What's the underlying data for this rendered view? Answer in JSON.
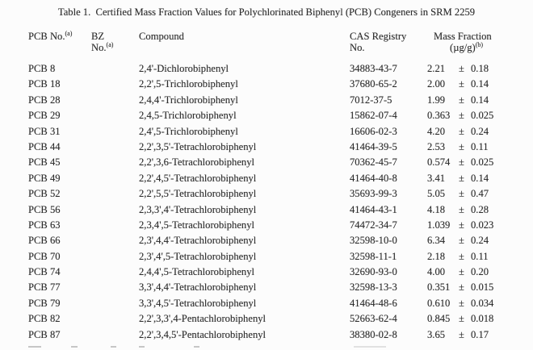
{
  "page": {
    "title": "Table 1.  Certified Mass Fraction Values for Polychlorinated Biphenyl (PCB) Congeners in SRM 2259"
  },
  "colors": {
    "background": "#fcfcfc",
    "text": "#2d2d2d"
  },
  "table": {
    "header": {
      "pcb_line1": "PCB No.",
      "pcb_sup": "(a)",
      "bz_line1": "BZ",
      "bz_line2": "No.",
      "bz_sup": "(a)",
      "compound": "Compound",
      "cas_line1": "CAS Registry",
      "cas_line2": "No.",
      "mf_line1": "Mass Fraction",
      "mf_line2": "(µg/g)",
      "mf_sup": "(b)"
    },
    "pm_symbol": "±",
    "rows": [
      {
        "pcb": "PCB 8",
        "bz": "",
        "compound": "2,4'-Dichlorobiphenyl",
        "cas": "34883-43-7",
        "value": "2.21",
        "err": "0.18"
      },
      {
        "pcb": "PCB 18",
        "bz": "",
        "compound": "2,2',5-Trichlorobiphenyl",
        "cas": "37680-65-2",
        "value": "2.00",
        "err": "0.14"
      },
      {
        "pcb": "PCB 28",
        "bz": "",
        "compound": "2,4,4'-Trichlorobiphenyl",
        "cas": "7012-37-5",
        "value": "1.99",
        "err": "0.14"
      },
      {
        "pcb": "PCB 29",
        "bz": "",
        "compound": "2,4,5-Trichlorobiphenyl",
        "cas": "15862-07-4",
        "value": "0.363",
        "err": "0.025"
      },
      {
        "pcb": "PCB 31",
        "bz": "",
        "compound": "2,4',5-Trichlorobiphenyl",
        "cas": "16606-02-3",
        "value": "4.20",
        "err": "0.24"
      },
      {
        "pcb": "PCB 44",
        "bz": "",
        "compound": "2,2',3,5'-Tetrachlorobiphenyl",
        "cas": "41464-39-5",
        "value": "2.53",
        "err": "0.11"
      },
      {
        "pcb": "PCB 45",
        "bz": "",
        "compound": "2,2',3,6-Tetrachlorobiphenyl",
        "cas": "70362-45-7",
        "value": "0.574",
        "err": "0.025"
      },
      {
        "pcb": "PCB 49",
        "bz": "",
        "compound": "2,2',4,5'-Tetrachlorobiphenyl",
        "cas": "41464-40-8",
        "value": "3.41",
        "err": "0.14"
      },
      {
        "pcb": "PCB 52",
        "bz": "",
        "compound": "2,2',5,5'-Tetrachlorobiphenyl",
        "cas": "35693-99-3",
        "value": "5.05",
        "err": "0.47"
      },
      {
        "pcb": "PCB 56",
        "bz": "",
        "compound": "2,3,3',4'-Tetrachlorobiphenyl",
        "cas": "41464-43-1",
        "value": "4.18",
        "err": "0.28"
      },
      {
        "pcb": "PCB 63",
        "bz": "",
        "compound": "2,3,4',5-Tetrachlorobiphenyl",
        "cas": "74472-34-7",
        "value": "1.039",
        "err": "0.023"
      },
      {
        "pcb": "PCB 66",
        "bz": "",
        "compound": "2,3',4,4'-Tetrachlorobiphenyl",
        "cas": "32598-10-0",
        "value": "6.34",
        "err": "0.24"
      },
      {
        "pcb": "PCB 70",
        "bz": "",
        "compound": "2,3',4',5-Tetrachlorobiphenyl",
        "cas": "32598-11-1",
        "value": "2.18",
        "err": "0.11"
      },
      {
        "pcb": "PCB 74",
        "bz": "",
        "compound": "2,4,4',5-Tetrachlorobiphenyl",
        "cas": "32690-93-0",
        "value": "4.00",
        "err": "0.20"
      },
      {
        "pcb": "PCB 77",
        "bz": "",
        "compound": "3,3',4,4'-Tetrachlorobiphenyl",
        "cas": "32598-13-3",
        "value": "0.351",
        "err": "0.015"
      },
      {
        "pcb": "PCB 79",
        "bz": "",
        "compound": "3,3',4,5'-Tetrachlorobiphenyl",
        "cas": "41464-48-6",
        "value": "0.610",
        "err": "0.034"
      },
      {
        "pcb": "PCB 82",
        "bz": "",
        "compound": "2,2',3,3',4-Pentachlorobiphenyl",
        "cas": "52663-62-4",
        "value": "0.845",
        "err": "0.018"
      },
      {
        "pcb": "PCB 87",
        "bz": "",
        "compound": "2,2',3,4,5'-Pentachlorobiphenyl",
        "cas": "38380-02-8",
        "value": "3.65",
        "err": "0.17"
      }
    ]
  }
}
